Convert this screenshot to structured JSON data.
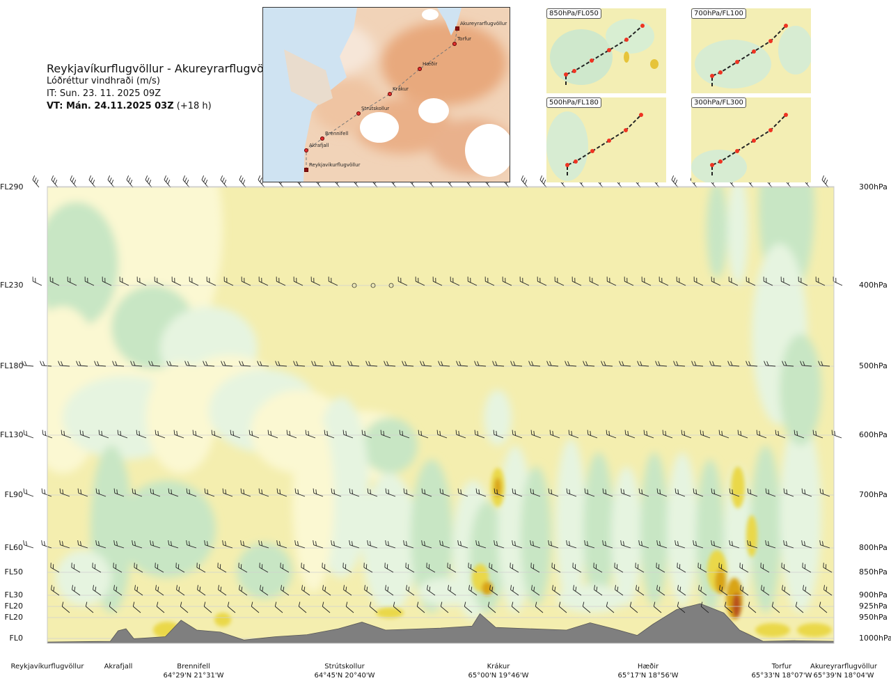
{
  "header": {
    "route": "Reykjavíkurflugvöllur - Akureyrarflugvöllur",
    "parameter": "Lóðréttur vindhraði (m/s)",
    "it": "IT: Sun. 23. 11. 2025 09Z",
    "vt_bold": "VT: Mán. 24.11.2025 03Z",
    "vt_offset": "(+18 h)"
  },
  "main_map": {
    "waypoints": [
      "Akureyrarflugvöllur",
      "Torfur",
      "Hæðir",
      "Krákur",
      "Strútskollur",
      "Brennifell",
      "Akrafjall",
      "Reykjavíkurflugvöllur"
    ]
  },
  "mini_maps": [
    "850hPa/FL050",
    "700hPa/FL100",
    "500hPa/FL180",
    "300hPa/FL300"
  ],
  "levels": [
    {
      "fl": "FL290",
      "hpa": "300hPa"
    },
    {
      "fl": "FL230",
      "hpa": "400hPa"
    },
    {
      "fl": "FL180",
      "hpa": "500hPa"
    },
    {
      "fl": "FL130",
      "hpa": "600hPa"
    },
    {
      "fl": "FL90",
      "hpa": "700hPa"
    },
    {
      "fl": "FL60",
      "hpa": "800hPa"
    },
    {
      "fl": "FL50",
      "hpa": "850hPa"
    },
    {
      "fl": "FL30",
      "hpa": "900hPa"
    },
    {
      "fl": "FL20",
      "hpa": "925hPa"
    },
    {
      "fl": "FL20",
      "hpa": "950hPa"
    },
    {
      "fl": "FL0",
      "hpa": "1000hPa"
    }
  ],
  "locations": [
    {
      "name": "Reykjavíkurflugvöllur",
      "coord": ""
    },
    {
      "name": "Akrafjall",
      "coord": ""
    },
    {
      "name": "Brennifell",
      "coord": "64°29'N 21°31'W"
    },
    {
      "name": "Strútskollur",
      "coord": "64°45'N 20°40'W"
    },
    {
      "name": "Krákur",
      "coord": "65°00'N 19°46'W"
    },
    {
      "name": "Hæðir",
      "coord": "65°17'N 18°56'W"
    },
    {
      "name": "Torfur",
      "coord": "65°33'N 18°07'W"
    },
    {
      "name": "Akureyrarflugvöllur",
      "coord": "65°39'N 18°04'W"
    }
  ],
  "chart_data": {
    "type": "heatmap",
    "title": "Reykjavíkurflugvöllur - Akureyrarflugvöllur",
    "subtitle": "Lóðréttur vindhraði (m/s)",
    "y_axis_left": [
      "FL0",
      "FL20",
      "FL20",
      "FL30",
      "FL50",
      "FL60",
      "FL90",
      "FL130",
      "FL180",
      "FL230",
      "FL290"
    ],
    "y_axis_right": [
      "1000hPa",
      "950hPa",
      "925hPa",
      "900hPa",
      "850hPa",
      "800hPa",
      "700hPa",
      "600hPa",
      "500hPa",
      "400hPa",
      "300hPa"
    ],
    "x_locations": [
      "Reykjavíkurflugvöllur",
      "Akrafjall",
      "Brennifell",
      "Strútskollur",
      "Krákur",
      "Hæðir",
      "Torfur",
      "Akureyrarflugvöllur"
    ],
    "colors": {
      "strong_down": "#8fc79b",
      "down": "#c8e6c4",
      "weak_down": "#e6f4e0",
      "near_zero": "#fbf8d2",
      "background": "#f4eeaf",
      "up": "#ead84a",
      "strong_up": "#d9a419",
      "very_strong_up": "#b8501a",
      "terrain": "#7f7f7f"
    },
    "terrain_profile": [
      {
        "x": 0.0,
        "h": 0.02
      },
      {
        "x": 0.08,
        "h": 0.03
      },
      {
        "x": 0.09,
        "h": 0.19
      },
      {
        "x": 0.1,
        "h": 0.22
      },
      {
        "x": 0.11,
        "h": 0.07
      },
      {
        "x": 0.15,
        "h": 0.1
      },
      {
        "x": 0.17,
        "h": 0.35
      },
      {
        "x": 0.19,
        "h": 0.2
      },
      {
        "x": 0.22,
        "h": 0.17
      },
      {
        "x": 0.25,
        "h": 0.05
      },
      {
        "x": 0.29,
        "h": 0.1
      },
      {
        "x": 0.33,
        "h": 0.13
      },
      {
        "x": 0.37,
        "h": 0.22
      },
      {
        "x": 0.4,
        "h": 0.32
      },
      {
        "x": 0.43,
        "h": 0.2
      },
      {
        "x": 0.5,
        "h": 0.23
      },
      {
        "x": 0.54,
        "h": 0.26
      },
      {
        "x": 0.55,
        "h": 0.45
      },
      {
        "x": 0.57,
        "h": 0.24
      },
      {
        "x": 0.66,
        "h": 0.2
      },
      {
        "x": 0.69,
        "h": 0.31
      },
      {
        "x": 0.72,
        "h": 0.22
      },
      {
        "x": 0.75,
        "h": 0.12
      },
      {
        "x": 0.77,
        "h": 0.29
      },
      {
        "x": 0.8,
        "h": 0.51
      },
      {
        "x": 0.83,
        "h": 0.6
      },
      {
        "x": 0.86,
        "h": 0.46
      },
      {
        "x": 0.88,
        "h": 0.2
      },
      {
        "x": 0.91,
        "h": 0.03
      },
      {
        "x": 0.95,
        "h": 0.04
      },
      {
        "x": 1.0,
        "h": 0.03
      }
    ]
  }
}
